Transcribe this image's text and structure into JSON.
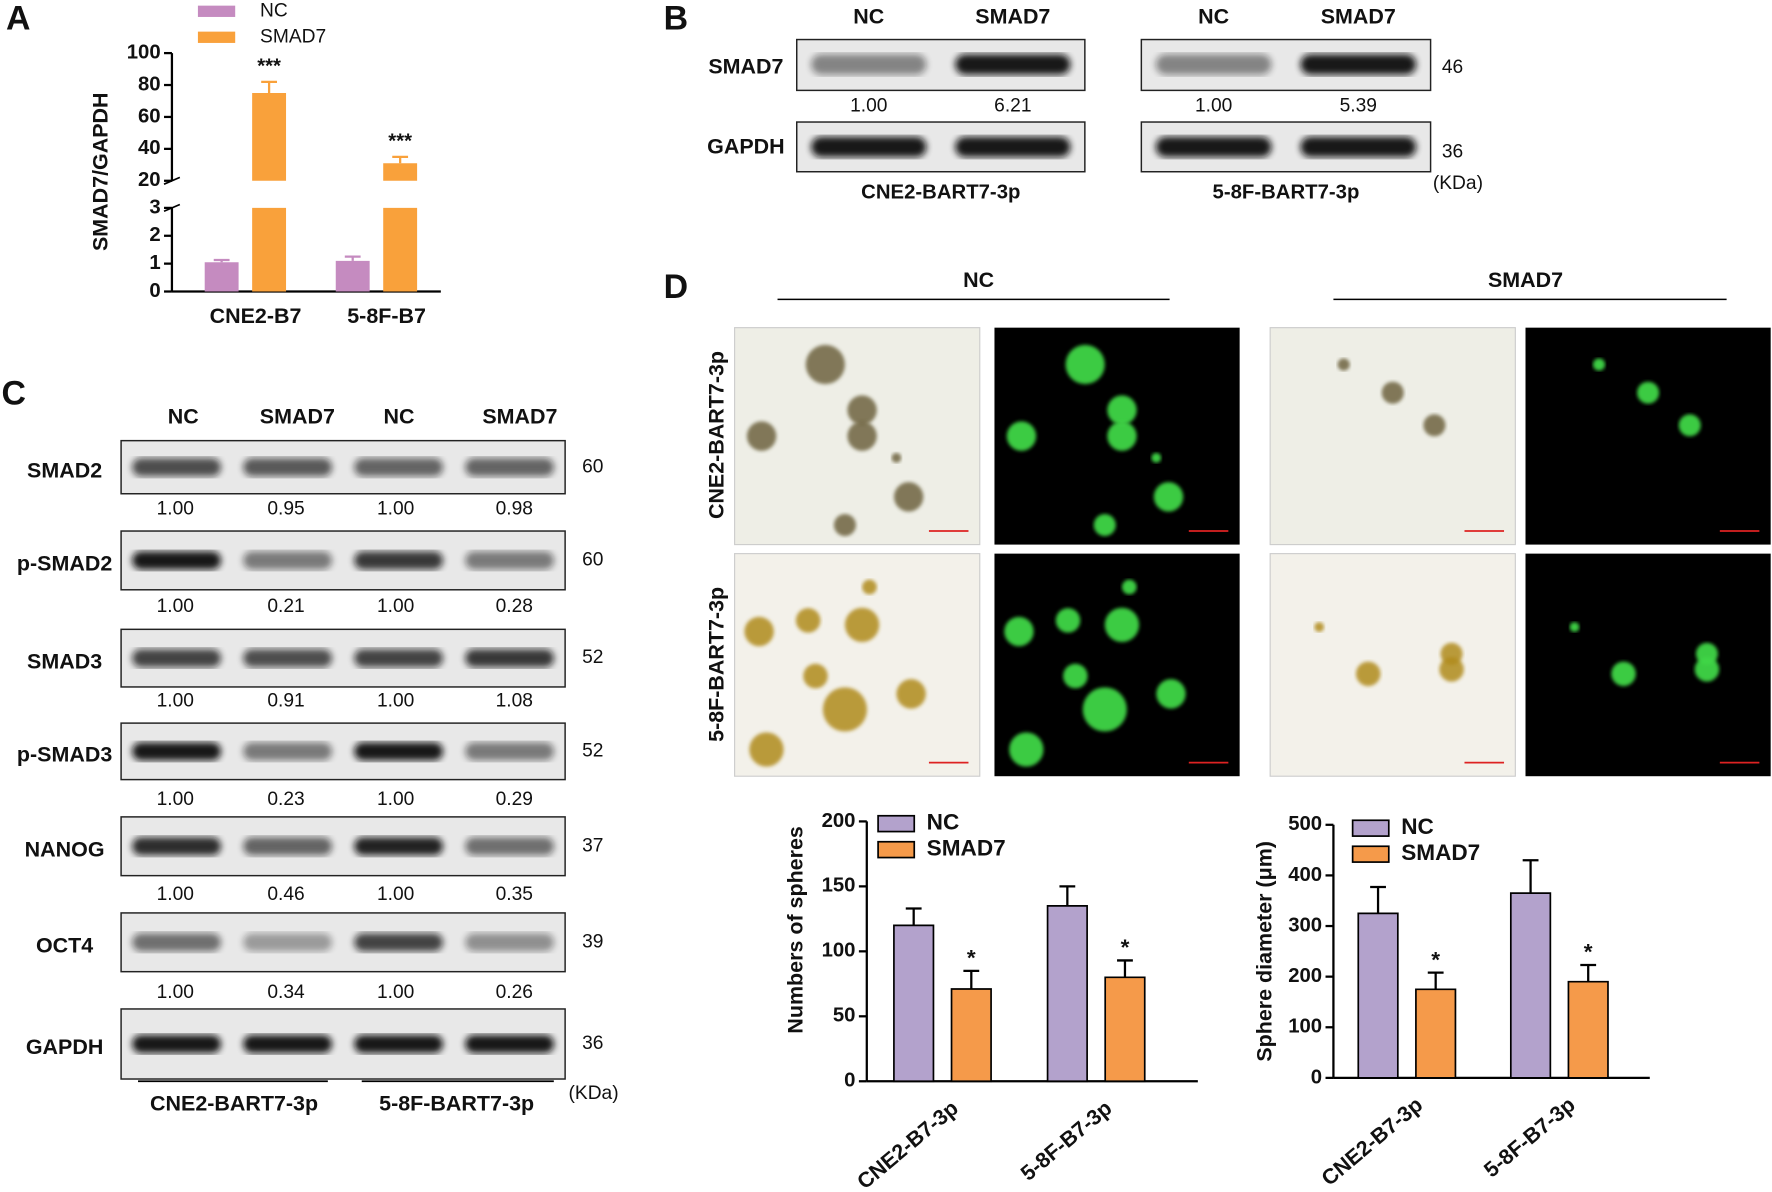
{
  "panel_labels": [
    "A",
    "B",
    "C",
    "D"
  ],
  "chart_data": [
    {
      "type": "bar",
      "ylabel": "SMAD7/GAPDH",
      "categories": [
        "CNE2-B7",
        "5-8F-B7"
      ],
      "series": [
        {
          "name": "NC",
          "color": "#c58bc0",
          "values": [
            1.05,
            1.1
          ],
          "errors": [
            0.08,
            0.15
          ]
        },
        {
          "name": "SMAD7",
          "color": "#f9a13b",
          "values": [
            75,
            31
          ],
          "errors": [
            7,
            4
          ],
          "significance": [
            "***",
            "***"
          ]
        }
      ],
      "ylim": [
        0,
        100
      ],
      "ybreak": [
        3,
        20
      ],
      "yticks": [
        0,
        1,
        2,
        3,
        20,
        40,
        60,
        80,
        100
      ],
      "legend": "top"
    },
    {
      "type": "bar",
      "ylabel": "Numbers of spheres",
      "categories": [
        "CNE2-B7-3p",
        "5-8F-B7-3p"
      ],
      "series": [
        {
          "name": "NC",
          "color": "#b3a2cc",
          "values": [
            120,
            135
          ],
          "errors": [
            13,
            15
          ]
        },
        {
          "name": "SMAD7",
          "color": "#f59a4a",
          "values": [
            71,
            80
          ],
          "errors": [
            14,
            13
          ],
          "significance": [
            "*",
            "*"
          ]
        }
      ],
      "ylim": [
        0,
        200
      ],
      "yticks": [
        0,
        50,
        100,
        150,
        200
      ],
      "legend": "upper left"
    },
    {
      "type": "bar",
      "ylabel": "Sphere diameter (μm)",
      "categories": [
        "CNE2-B7-3p",
        "5-8F-B7-3p"
      ],
      "series": [
        {
          "name": "NC",
          "color": "#b3a2cc",
          "values": [
            325,
            365
          ],
          "errors": [
            52,
            65
          ]
        },
        {
          "name": "SMAD7",
          "color": "#f59a4a",
          "values": [
            175,
            190
          ],
          "errors": [
            33,
            33
          ],
          "significance": [
            "*",
            "*"
          ]
        }
      ],
      "ylim": [
        0,
        500
      ],
      "yticks": [
        0,
        100,
        200,
        300,
        400,
        500
      ],
      "legend": "upper left"
    }
  ],
  "blot_b": {
    "rows": [
      "SMAD7",
      "GAPDH"
    ],
    "kda": [
      "46",
      "36"
    ],
    "kda_unit": "(KDa)",
    "blots": [
      {
        "columns": [
          "NC",
          "SMAD7"
        ],
        "cell_line": "CNE2-BART7-3p",
        "quant": [
          "1.00",
          "6.21"
        ]
      },
      {
        "columns": [
          "NC",
          "SMAD7"
        ],
        "cell_line": "5-8F-BART7-3p",
        "quant": [
          "1.00",
          "5.39"
        ]
      }
    ]
  },
  "blot_c": {
    "columns": [
      "NC",
      "SMAD7",
      "NC",
      "SMAD7"
    ],
    "rows": [
      {
        "label": "SMAD2",
        "kda": "60",
        "quant": [
          "1.00",
          "0.95",
          "1.00",
          "0.98"
        ]
      },
      {
        "label": "p-SMAD2",
        "kda": "60",
        "quant": [
          "1.00",
          "0.21",
          "1.00",
          "0.28"
        ]
      },
      {
        "label": "SMAD3",
        "kda": "52",
        "quant": [
          "1.00",
          "0.91",
          "1.00",
          "1.08"
        ]
      },
      {
        "label": "p-SMAD3",
        "kda": "52",
        "quant": [
          "1.00",
          "0.23",
          "1.00",
          "0.29"
        ]
      },
      {
        "label": "NANOG",
        "kda": "37",
        "quant": [
          "1.00",
          "0.46",
          "1.00",
          "0.35"
        ]
      },
      {
        "label": "OCT4",
        "kda": "39",
        "quant": [
          "1.00",
          "0.34",
          "1.00",
          "0.26"
        ]
      },
      {
        "label": "GAPDH",
        "kda": "36"
      }
    ],
    "groups": [
      "CNE2-BART7-3p",
      "5-8F-BART7-3p"
    ],
    "kda_unit": "(KDa)"
  },
  "spheres": {
    "groups": [
      "NC",
      "SMAD7"
    ],
    "rows": [
      "CNE2-BART7-3p",
      "5-8F-BART7-3p"
    ]
  }
}
